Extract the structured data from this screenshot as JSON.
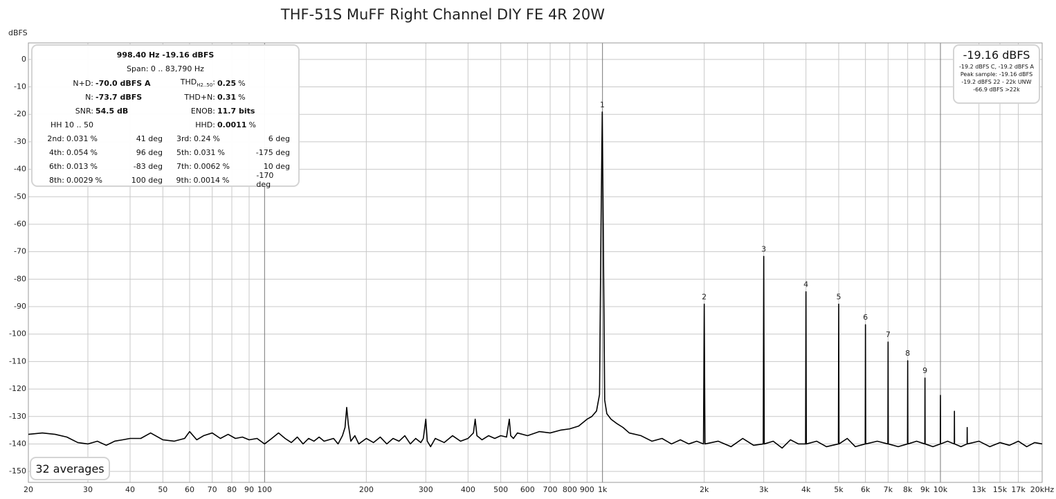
{
  "chart_data": {
    "type": "line",
    "title": "THF-51S MuFF Right Channel DIY FE 4R 20W",
    "y_label": "dBFS",
    "log_x": true,
    "grid": true,
    "color": "#000000",
    "xlim": [
      20,
      20000
    ],
    "ylim": [
      -154,
      6
    ],
    "yticks": [
      0,
      -10,
      -20,
      -30,
      -40,
      -50,
      -60,
      -70,
      -80,
      -90,
      -100,
      -110,
      -120,
      -130,
      -140,
      -150
    ],
    "xticks": [
      20,
      30,
      40,
      50,
      60,
      70,
      80,
      90,
      100,
      200,
      300,
      400,
      500,
      600,
      700,
      800,
      900,
      {
        "value": 1000,
        "label": "1k"
      },
      {
        "value": 2000,
        "label": "2k"
      },
      {
        "value": 3000,
        "label": "3k"
      },
      {
        "value": 4000,
        "label": "4k"
      },
      {
        "value": 5000,
        "label": "5k"
      },
      {
        "value": 6000,
        "label": "6k"
      },
      {
        "value": 7000,
        "label": "7k"
      },
      {
        "value": 8000,
        "label": "8k"
      },
      {
        "value": 9000,
        "label": "9k"
      },
      {
        "value": 10000,
        "label": "10k"
      },
      {
        "value": 13000,
        "label": "13k"
      },
      {
        "value": 15000,
        "label": "15k"
      },
      {
        "value": 17000,
        "label": "17k"
      },
      {
        "value": 20000,
        "label": "20kHz"
      }
    ],
    "x": [
      20,
      22,
      24,
      26,
      28,
      30,
      32,
      34,
      36,
      38,
      40,
      43,
      46,
      50,
      54,
      58,
      60,
      63,
      66,
      70,
      74,
      78,
      82,
      86,
      90,
      95,
      100,
      105,
      110,
      115,
      120,
      125,
      130,
      135,
      140,
      145,
      150,
      160,
      165,
      170,
      173,
      175,
      177,
      180,
      185,
      190,
      200,
      210,
      220,
      230,
      240,
      250,
      260,
      270,
      280,
      290,
      295,
      300,
      303,
      310,
      320,
      340,
      360,
      380,
      400,
      415,
      420,
      425,
      440,
      460,
      480,
      500,
      520,
      530,
      535,
      545,
      560,
      600,
      650,
      700,
      750,
      800,
      850,
      900,
      930,
      960,
      980,
      990,
      998.4,
      1005,
      1015,
      1030,
      1060,
      1100,
      1150,
      1200,
      1300,
      1400,
      1500,
      1600,
      1700,
      1800,
      1900,
      1990,
      2000,
      2010,
      2200,
      2400,
      2600,
      2800,
      2990,
      3000,
      3010,
      3200,
      3400,
      3600,
      3800,
      3990,
      4000,
      4010,
      4300,
      4600,
      4990,
      5000,
      5010,
      5300,
      5600,
      5990,
      6000,
      6010,
      6500,
      6990,
      7000,
      7010,
      7500,
      7990,
      8000,
      8010,
      8500,
      8990,
      9000,
      9010,
      9500,
      9990,
      10000,
      10010,
      10500,
      10990,
      11000,
      11010,
      11500,
      11990,
      12000,
      12010,
      13000,
      14000,
      15000,
      16000,
      17000,
      18000,
      19000,
      20000
    ],
    "values": [
      -136.5,
      -136,
      -136.5,
      -137.5,
      -139.5,
      -140,
      -139,
      -140.5,
      -139,
      -138.5,
      -138,
      -138,
      -136,
      -138.5,
      -139,
      -138,
      -135.5,
      -138.5,
      -137,
      -136,
      -138,
      -136.5,
      -138,
      -137.5,
      -138.5,
      -138,
      -140,
      -138,
      -136,
      -138,
      -139.5,
      -137.5,
      -140,
      -138,
      -139,
      -137.5,
      -139,
      -138,
      -140,
      -137,
      -134,
      -126.7,
      -133,
      -139,
      -137,
      -140,
      -138,
      -139.5,
      -137.5,
      -140,
      -138,
      -139,
      -137,
      -140,
      -138,
      -139.5,
      -138,
      -131,
      -139,
      -141,
      -138,
      -139.5,
      -137,
      -139,
      -138,
      -136,
      -131,
      -137,
      -138.5,
      -137,
      -138,
      -137,
      -137.5,
      -131,
      -137,
      -138,
      -136,
      -137,
      -135.5,
      -136,
      -135,
      -134.5,
      -133.5,
      -131,
      -130,
      -128,
      -122,
      -60,
      -19.16,
      -60,
      -124,
      -129,
      -131,
      -132.5,
      -134,
      -136,
      -137,
      -139,
      -138,
      -140,
      -138.5,
      -140,
      -139,
      -140,
      -89.1,
      -140,
      -139,
      -141,
      -138,
      -140.5,
      -140,
      -71.7,
      -140,
      -139,
      -141.5,
      -138.5,
      -140,
      -140,
      -84.6,
      -140,
      -139,
      -141,
      -140,
      -89.1,
      -140,
      -138,
      -141,
      -140,
      -96.6,
      -140,
      -139,
      -140,
      -102.9,
      -140,
      -141,
      -140,
      -109.7,
      -140,
      -139,
      -140,
      -116,
      -140,
      -141,
      -140,
      -122.3,
      -140,
      -139,
      -140,
      -128.1,
      -140,
      -141,
      -140,
      -134,
      -140,
      -139,
      -141,
      -139.5,
      -140.5,
      -139,
      -141,
      -139.5,
      -140
    ],
    "annotations": [
      {
        "label": "1",
        "x": 998.4,
        "y": -19.16
      },
      {
        "label": "2",
        "x": 2000,
        "y": -89.1
      },
      {
        "label": "3",
        "x": 3000,
        "y": -71.7
      },
      {
        "label": "4",
        "x": 4000,
        "y": -84.6
      },
      {
        "label": "5",
        "x": 5000,
        "y": -89.1
      },
      {
        "label": "6",
        "x": 6000,
        "y": -96.6
      },
      {
        "label": "7",
        "x": 7000,
        "y": -102.9
      },
      {
        "label": "8",
        "x": 8000,
        "y": -109.7
      },
      {
        "label": "9",
        "x": 9000,
        "y": -116
      }
    ]
  },
  "info_panel": {
    "header": [
      "998.40 Hz  -19.16 dBFS",
      "Span: 0 .. 83,790 Hz"
    ],
    "summary": [
      [
        {
          "label": "N+D:",
          "value": "-70.0 dBFS A"
        },
        {
          "label": "THD",
          "sub": "H2..50",
          "label_end": ":",
          "value": "0.25",
          "unit": "%"
        }
      ],
      [
        {
          "label": "N:",
          "value": "-73.7 dBFS"
        },
        {
          "label": "THD+N:",
          "value": "0.31",
          "unit": "%"
        }
      ],
      [
        {
          "label": "SNR:",
          "value": "54.5 dB"
        },
        {
          "label": "ENOB:",
          "value": "11.7 bits"
        }
      ],
      [
        {
          "label": "HH 10 .. 50"
        },
        {
          "label": "HHD:",
          "value": "0.0011",
          "unit": "%"
        }
      ]
    ],
    "harmonics": [
      {
        "label": "2nd:",
        "value": "0.031",
        "unit": "%",
        "phase": "41 deg"
      },
      {
        "label": "3rd:",
        "value": "0.24",
        "unit": "%",
        "phase": "6 deg"
      },
      {
        "label": "4th:",
        "value": "0.054",
        "unit": "%",
        "phase": "96 deg"
      },
      {
        "label": "5th:",
        "value": "0.031",
        "unit": "%",
        "phase": "-175 deg"
      },
      {
        "label": "6th:",
        "value": "0.013",
        "unit": "%",
        "phase": "-83 deg"
      },
      {
        "label": "7th:",
        "value": "0.0062",
        "unit": "%",
        "phase": "10 deg"
      },
      {
        "label": "8th:",
        "value": "0.0029",
        "unit": "%",
        "phase": "100 deg"
      },
      {
        "label": "9th:",
        "value": "0.0014",
        "unit": "%",
        "phase": "-170 deg"
      }
    ]
  },
  "level_panel": {
    "level": "-19.16 dBFS",
    "lines": [
      "-19.2 dBFS C, -19.2 dBFS A",
      "Peak sample: -19.16 dBFS",
      "-19.2 dBFS 22 - 22k UNW",
      "-66.9 dBFS >22k"
    ]
  },
  "averages": "32 averages"
}
